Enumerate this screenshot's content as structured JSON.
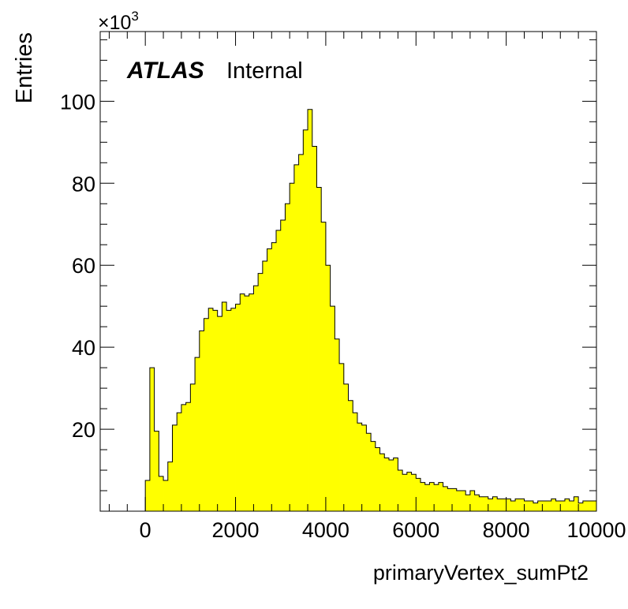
{
  "chart_data": {
    "type": "histogram",
    "xlabel": "primaryVertex_sumPt2",
    "ylabel": "Entries",
    "y_multiplier": "×10",
    "y_multiplier_exponent": "3",
    "label_bold": "ATLAS",
    "label_normal": "Internal",
    "xlim": [
      -1000,
      10000
    ],
    "ylim": [
      0,
      117
    ],
    "x_ticks": [
      0,
      2000,
      4000,
      6000,
      8000,
      10000
    ],
    "y_ticks": [
      20,
      40,
      60,
      80,
      100
    ],
    "bin_start": 0,
    "bin_width": 100,
    "values": [
      7.5,
      35,
      19.5,
      8.5,
      7.5,
      12,
      21,
      24,
      26,
      26.5,
      31,
      37.5,
      44,
      47,
      49.5,
      49,
      47.5,
      51,
      49,
      49.5,
      50.5,
      53,
      52.5,
      53,
      55,
      58,
      61,
      64,
      65.5,
      68.5,
      71,
      75,
      80,
      84.5,
      87,
      93,
      98,
      89,
      79,
      70.5,
      60,
      50,
      42,
      36,
      31,
      27,
      24,
      21.5,
      21,
      19,
      17,
      15.5,
      14,
      13,
      12.5,
      13,
      10,
      9,
      9.5,
      9,
      8,
      7,
      6.5,
      7,
      6.5,
      7,
      6,
      5.5,
      5.5,
      5,
      5,
      4,
      5,
      4,
      3.5,
      3.5,
      3,
      3.5,
      3,
      3,
      3,
      2.5,
      3,
      3,
      2.5,
      2.5,
      2,
      2.5,
      2.5,
      2.5,
      3,
      2.5,
      2.5,
      3,
      2.5,
      3.5,
      2,
      2.5,
      2.5,
      2.5
    ],
    "fill_color": "#ffff00",
    "line_color": "#000000"
  }
}
